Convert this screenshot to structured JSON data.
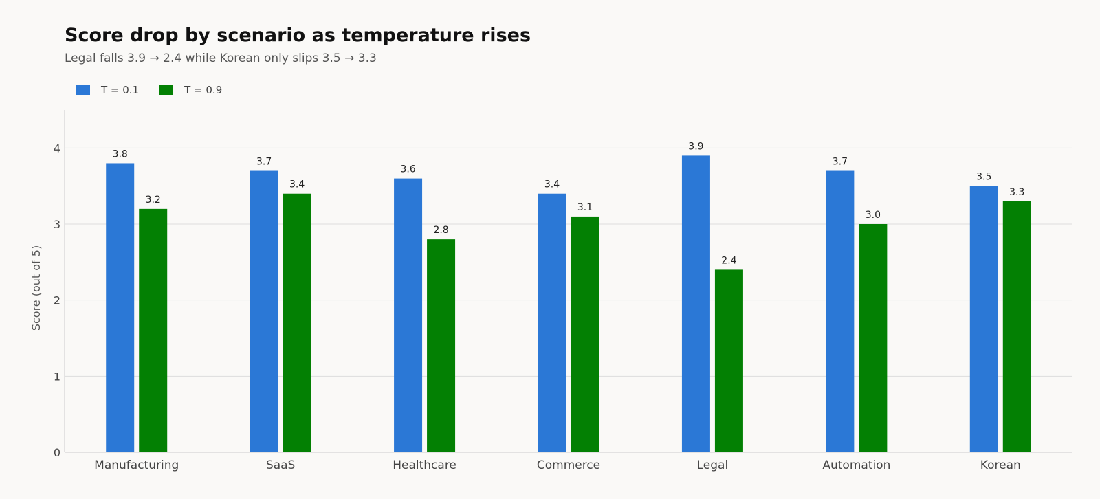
{
  "chart_data": {
    "type": "bar",
    "title": "Score drop by scenario as temperature rises",
    "subtitle": "Legal falls 3.9 → 2.4 while Korean only slips 3.5 → 3.3",
    "xlabel": "",
    "ylabel": "Score (out of 5)",
    "ylim": [
      0,
      4.5
    ],
    "yticks": [
      "0",
      "1",
      "2",
      "3",
      "4"
    ],
    "grid": "horizontal",
    "legend_position": "top-left",
    "categories": [
      "Manufacturing",
      "SaaS",
      "Healthcare",
      "Commerce",
      "Legal",
      "Automation",
      "Korean"
    ],
    "series": [
      {
        "name": "T = 0.1",
        "color": "#2b78d6",
        "values": [
          3.8,
          3.7,
          3.6,
          3.4,
          3.9,
          3.7,
          3.5
        ],
        "labels": [
          "3.8",
          "3.7",
          "3.6",
          "3.4",
          "3.9",
          "3.7",
          "3.5"
        ]
      },
      {
        "name": "T = 0.9",
        "color": "#038003",
        "values": [
          3.2,
          3.4,
          2.8,
          3.1,
          2.4,
          3.0,
          3.3
        ],
        "labels": [
          "3.2",
          "3.4",
          "2.8",
          "3.1",
          "2.4",
          "3.0",
          "3.3"
        ]
      }
    ]
  }
}
